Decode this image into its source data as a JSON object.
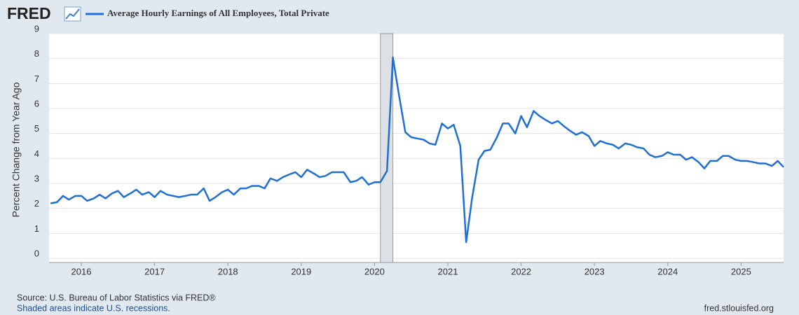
{
  "chart_data": {
    "type": "line",
    "logo": "FRED",
    "source": "Source: U.S. Bureau of Labor Statistics via FRED®",
    "note": "Shaded areas indicate U.S. recessions.",
    "credit": "fred.stlouisfed.org",
    "y_label": "Percent Change from Year Ago",
    "xlim": [
      2015.56,
      2025.58
    ],
    "xticks": [
      2016,
      2017,
      2018,
      2019,
      2020,
      2021,
      2022,
      2023,
      2024,
      2025
    ],
    "ylim": [
      0,
      9
    ],
    "yticks": [
      0,
      1,
      2,
      3,
      4,
      5,
      6,
      7,
      8,
      9
    ],
    "grid": true,
    "recessions": [
      [
        2020.08,
        2020.25
      ]
    ],
    "x": [
      2015.58,
      2015.67,
      2015.75,
      2015.83,
      2015.92,
      2016.0,
      2016.08,
      2016.17,
      2016.25,
      2016.33,
      2016.42,
      2016.5,
      2016.58,
      2016.67,
      2016.75,
      2016.83,
      2016.92,
      2017.0,
      2017.08,
      2017.17,
      2017.25,
      2017.33,
      2017.42,
      2017.5,
      2017.58,
      2017.67,
      2017.75,
      2017.83,
      2017.92,
      2018.0,
      2018.08,
      2018.17,
      2018.25,
      2018.33,
      2018.42,
      2018.5,
      2018.58,
      2018.67,
      2018.75,
      2018.83,
      2018.92,
      2019.0,
      2019.08,
      2019.17,
      2019.25,
      2019.33,
      2019.42,
      2019.5,
      2019.58,
      2019.67,
      2019.75,
      2019.83,
      2019.92,
      2020.0,
      2020.08,
      2020.17,
      2020.25,
      2020.33,
      2020.42,
      2020.5,
      2020.58,
      2020.67,
      2020.75,
      2020.83,
      2020.92,
      2021.0,
      2021.08,
      2021.17,
      2021.25,
      2021.33,
      2021.42,
      2021.5,
      2021.58,
      2021.67,
      2021.75,
      2021.83,
      2021.92,
      2022.0,
      2022.08,
      2022.17,
      2022.25,
      2022.33,
      2022.42,
      2022.5,
      2022.58,
      2022.67,
      2022.75,
      2022.83,
      2022.92,
      2023.0,
      2023.08,
      2023.17,
      2023.25,
      2023.33,
      2023.42,
      2023.5,
      2023.58,
      2023.67,
      2023.75,
      2023.83,
      2023.92,
      2024.0,
      2024.08,
      2024.17,
      2024.25,
      2024.33,
      2024.42,
      2024.5,
      2024.58,
      2024.67,
      2024.75,
      2024.83,
      2024.92,
      2025.0,
      2025.08,
      2025.17,
      2025.25,
      2025.33,
      2025.42,
      2025.5,
      2025.58
    ],
    "series": [
      {
        "name": "Average Hourly Earnings of All Employees, Total Private",
        "color": "#1f6fd6",
        "values": [
          2.2,
          2.25,
          2.5,
          2.35,
          2.5,
          2.5,
          2.3,
          2.4,
          2.55,
          2.4,
          2.6,
          2.7,
          2.45,
          2.6,
          2.75,
          2.55,
          2.65,
          2.45,
          2.7,
          2.55,
          2.5,
          2.45,
          2.5,
          2.55,
          2.55,
          2.8,
          2.3,
          2.45,
          2.65,
          2.75,
          2.55,
          2.8,
          2.8,
          2.9,
          2.9,
          2.8,
          3.2,
          3.1,
          3.25,
          3.35,
          3.45,
          3.25,
          3.55,
          3.4,
          3.25,
          3.3,
          3.45,
          3.45,
          3.45,
          3.05,
          3.1,
          3.25,
          2.95,
          3.05,
          3.05,
          3.5,
          8.05,
          6.6,
          5.05,
          4.85,
          4.8,
          4.75,
          4.6,
          4.55,
          5.4,
          5.2,
          5.35,
          4.5,
          0.65,
          2.4,
          3.95,
          4.3,
          4.35,
          4.85,
          5.4,
          5.4,
          5.0,
          5.7,
          5.25,
          5.9,
          5.7,
          5.55,
          5.4,
          5.5,
          5.3,
          5.1,
          4.95,
          5.05,
          4.9,
          4.5,
          4.7,
          4.6,
          4.55,
          4.4,
          4.6,
          4.55,
          4.45,
          4.4,
          4.15,
          4.05,
          4.1,
          4.25,
          4.15,
          4.15,
          3.95,
          4.05,
          3.85,
          3.6,
          3.9,
          3.9,
          4.1,
          4.1,
          3.95,
          3.9,
          3.9,
          3.85,
          3.8,
          3.8,
          3.7,
          3.9,
          3.65
        ]
      }
    ]
  }
}
